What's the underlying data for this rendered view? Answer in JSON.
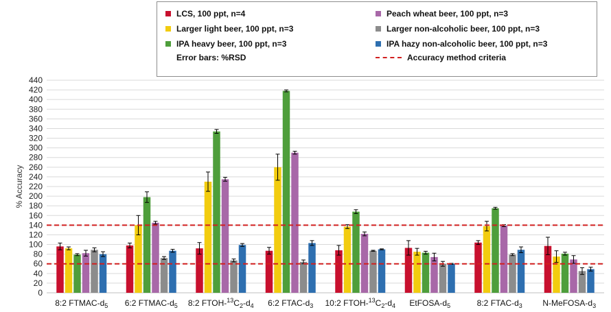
{
  "chart_data": {
    "type": "bar",
    "title": "",
    "xlabel": "",
    "ylabel": "% Accuracy",
    "ylim": [
      0,
      440
    ],
    "ytick_step": 20,
    "grid": true,
    "legend_placement": "top",
    "error_bar_note": "Error bars: %RSD",
    "categories": [
      {
        "prefix": "8:2 FTMAC-d",
        "sub": "5",
        "rest": ""
      },
      {
        "prefix": "6:2 FTMAC-d",
        "sub": "5",
        "rest": ""
      },
      {
        "prefix": "8:2 FTOH-",
        "sup": "13",
        "mid": "C",
        "sub2": "2",
        "tail": "-d",
        "sub": "4"
      },
      {
        "prefix": "6:2 FTAC-d",
        "sub": "3",
        "rest": ""
      },
      {
        "prefix": "10:2 FTOH-",
        "sup": "13",
        "mid": "C",
        "sub2": "2",
        "tail": "-d",
        "sub": "4"
      },
      {
        "prefix": "EtFOSA-d",
        "sub": "5",
        "rest": ""
      },
      {
        "prefix": "8:2 FTAC-d",
        "sub": "3",
        "rest": ""
      },
      {
        "prefix": "N-MeFOSA-d",
        "sub": "3",
        "rest": ""
      }
    ],
    "series": [
      {
        "name": "LCS, 100 ppt, n=4",
        "color": "#c8102e",
        "values": [
          96,
          98,
          92,
          87,
          88,
          93,
          104,
          97
        ],
        "errors": [
          7,
          5,
          12,
          7,
          10,
          15,
          4,
          18
        ]
      },
      {
        "name": "Larger light beer, 100 ppt, n=3",
        "color": "#f2cc0f",
        "values": [
          92,
          140,
          230,
          260,
          137,
          85,
          138,
          75
        ],
        "errors": [
          3,
          20,
          20,
          27,
          4,
          7,
          10,
          12
        ]
      },
      {
        "name": "IPA heavy beer, 100 ppt, n=3",
        "color": "#4e9e3b",
        "values": [
          79,
          198,
          334,
          418,
          168,
          83,
          175,
          81
        ],
        "errors": [
          2,
          11,
          4,
          2,
          4,
          3,
          2,
          3
        ]
      },
      {
        "name": "Peach wheat beer, 100 ppt, n=3",
        "color": "#a868a8",
        "values": [
          82,
          145,
          235,
          290,
          122,
          74,
          139,
          69
        ],
        "errors": [
          6,
          3,
          4,
          3,
          4,
          8,
          2,
          8
        ]
      },
      {
        "name": "Larger non-alcoholic beer, 100 ppt, n=3",
        "color": "#8c8c8c",
        "values": [
          89,
          72,
          67,
          64,
          87,
          60,
          79,
          45
        ],
        "errors": [
          4,
          3,
          3,
          4,
          1,
          5,
          2,
          7
        ]
      },
      {
        "name": "IPA hazy non-alcoholic beer, 100 ppt, n=3",
        "color": "#2e6fb0",
        "values": [
          80,
          87,
          99,
          103,
          90,
          60,
          89,
          49
        ],
        "errors": [
          5,
          3,
          3,
          5,
          1,
          1,
          6,
          4
        ]
      }
    ],
    "reference_lines": {
      "name": "Accuracy method criteria",
      "color": "#d11f1f",
      "values": [
        140,
        60
      ]
    }
  }
}
